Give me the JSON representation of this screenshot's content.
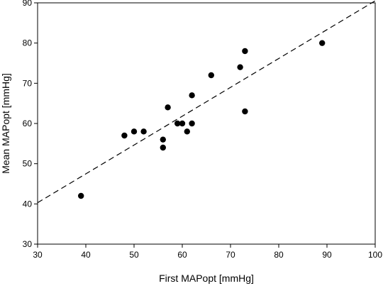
{
  "chart_data": {
    "type": "scatter",
    "title": "",
    "xlabel": "First MAPopt [mmHg]",
    "ylabel": "Mean MAPopt [mmHg]",
    "xlim": [
      30,
      100
    ],
    "ylim": [
      30,
      90
    ],
    "x_ticks": [
      30,
      40,
      50,
      60,
      70,
      80,
      90,
      100
    ],
    "y_ticks": [
      30,
      40,
      50,
      60,
      70,
      80,
      90
    ],
    "grid": false,
    "legend": "none",
    "reference_line": {
      "style": "dashed",
      "from": [
        30,
        40.3
      ],
      "to": [
        100,
        90.5
      ]
    },
    "points": [
      {
        "x": 39,
        "y": 42
      },
      {
        "x": 48,
        "y": 57
      },
      {
        "x": 50,
        "y": 58
      },
      {
        "x": 52,
        "y": 58
      },
      {
        "x": 56,
        "y": 54
      },
      {
        "x": 56,
        "y": 56
      },
      {
        "x": 57,
        "y": 64
      },
      {
        "x": 59,
        "y": 60
      },
      {
        "x": 60,
        "y": 60
      },
      {
        "x": 61,
        "y": 58
      },
      {
        "x": 62,
        "y": 60
      },
      {
        "x": 62,
        "y": 67
      },
      {
        "x": 66,
        "y": 72
      },
      {
        "x": 72,
        "y": 74
      },
      {
        "x": 73,
        "y": 78
      },
      {
        "x": 73,
        "y": 63
      },
      {
        "x": 89,
        "y": 80
      }
    ],
    "colors": {
      "marker": "#000000",
      "axis": "#000000",
      "line": "#000000"
    }
  }
}
